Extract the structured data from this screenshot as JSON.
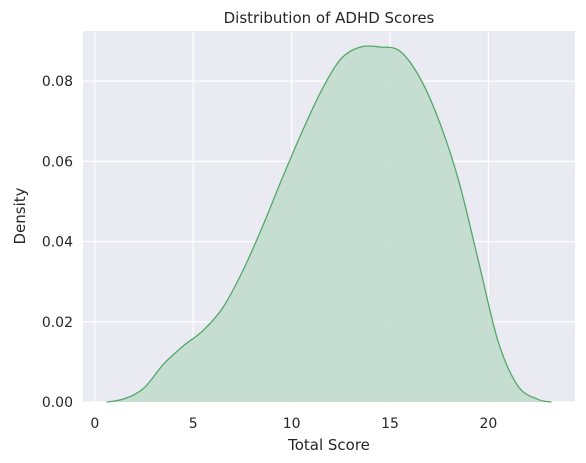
{
  "chart_data": {
    "type": "area",
    "title": "Distribution of ADHD Scores",
    "xlabel": "Total Score",
    "ylabel": "Density",
    "xlim": [
      -0.6,
      24.4
    ],
    "ylim": [
      0,
      0.0925
    ],
    "xticks": [
      0,
      5,
      10,
      15,
      20
    ],
    "yticks": [
      0.0,
      0.02,
      0.04,
      0.06,
      0.08
    ],
    "ytick_labels": [
      "0.00",
      "0.02",
      "0.04",
      "0.06",
      "0.08"
    ],
    "grid": true,
    "legend": "none",
    "background_color": "#eaeaf2",
    "line_color": "#55a868",
    "fill_color": "#c4dccf",
    "series": [
      {
        "x": [
          0.6,
          1.5,
          2.5,
          3.5,
          4.5,
          5.5,
          6.5,
          7.5,
          8.5,
          9.5,
          10.5,
          11.5,
          12.5,
          13.5,
          14.5,
          15.5,
          16.5,
          17.5,
          18.5,
          19.5,
          20.5,
          21.5,
          22.5,
          23.2
        ],
        "y": [
          0.0,
          0.0008,
          0.0035,
          0.0095,
          0.014,
          0.0178,
          0.0235,
          0.0325,
          0.0435,
          0.0555,
          0.067,
          0.0775,
          0.0855,
          0.0885,
          0.0885,
          0.0875,
          0.081,
          0.07,
          0.055,
          0.035,
          0.015,
          0.004,
          0.0007,
          0.0
        ]
      }
    ]
  }
}
